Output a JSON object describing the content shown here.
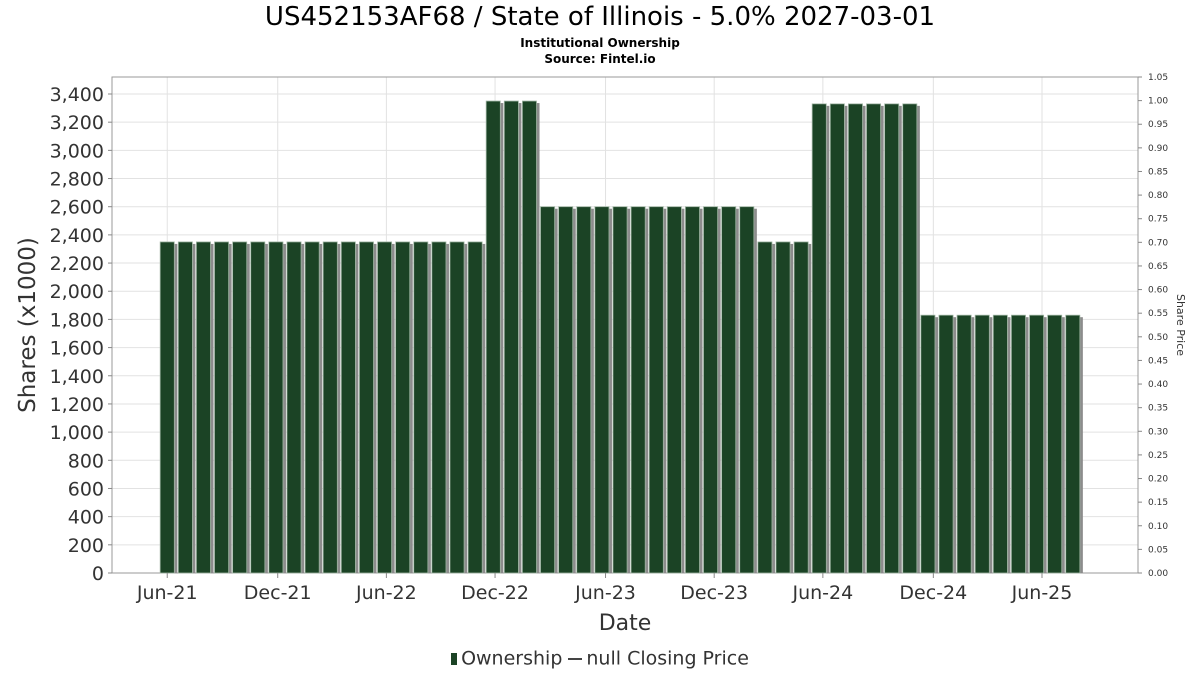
{
  "chart_data": {
    "type": "bar",
    "title": "US452153AF68 / State of Illinois - 5.0% 2027-03-01",
    "subtitles": [
      "Institutional Ownership",
      "Source: Fintel.io"
    ],
    "xlabel": "Date",
    "ylabel": "Shares (x1000)",
    "y2label": "Share Price",
    "ylim": [
      0,
      3400
    ],
    "y2lim": [
      0,
      1.05
    ],
    "yticks": [
      "0",
      "200",
      "400",
      "600",
      "800",
      "1,000",
      "1,200",
      "1,400",
      "1,600",
      "1,800",
      "2,000",
      "2,200",
      "2,400",
      "2,600",
      "2,800",
      "3,000",
      "3,200",
      "3,400"
    ],
    "ytick_values": [
      0,
      200,
      400,
      600,
      800,
      1000,
      1200,
      1400,
      1600,
      1800,
      2000,
      2200,
      2400,
      2600,
      2800,
      3000,
      3200,
      3400
    ],
    "y2ticks": [
      "0.00",
      "0.05",
      "0.10",
      "0.15",
      "0.20",
      "0.25",
      "0.30",
      "0.35",
      "0.40",
      "0.45",
      "0.50",
      "0.55",
      "0.60",
      "0.65",
      "0.70",
      "0.75",
      "0.80",
      "0.85",
      "0.90",
      "0.95",
      "1.00",
      "1.05"
    ],
    "y2tick_values": [
      0,
      0.05,
      0.1,
      0.15,
      0.2,
      0.25,
      0.3,
      0.35,
      0.4,
      0.45,
      0.5,
      0.55,
      0.6,
      0.65,
      0.7,
      0.75,
      0.8,
      0.85,
      0.9,
      0.95,
      1.0,
      1.05
    ],
    "xticks": [
      {
        "label": "Jun-21",
        "index": 0.5
      },
      {
        "label": "Dec-21",
        "index": 6.6
      },
      {
        "label": "Jun-22",
        "index": 12.6
      },
      {
        "label": "Dec-22",
        "index": 18.6
      },
      {
        "label": "Jun-23",
        "index": 24.7
      },
      {
        "label": "Dec-23",
        "index": 30.7
      },
      {
        "label": "Jun-24",
        "index": 36.7
      },
      {
        "label": "Dec-24",
        "index": 42.8
      },
      {
        "label": "Jun-25",
        "index": 48.8
      }
    ],
    "x_range": [
      -2.55,
      54.1
    ],
    "series": [
      {
        "name": "Ownership",
        "color": "#1b4325",
        "values": [
          2350,
          2350,
          2350,
          2350,
          2350,
          2350,
          2350,
          2350,
          2350,
          2350,
          2350,
          2350,
          2350,
          2350,
          2350,
          2350,
          2350,
          2350,
          3350,
          3350,
          3350,
          2600,
          2600,
          2600,
          2600,
          2600,
          2600,
          2600,
          2600,
          2600,
          2600,
          2600,
          2600,
          2350,
          2350,
          2350,
          3330,
          3330,
          3330,
          3330,
          3330,
          3330,
          1830,
          1830,
          1830,
          1830,
          1830,
          1830,
          1830,
          1830,
          1830
        ]
      }
    ],
    "legend": [
      "Ownership",
      "null Closing Price"
    ],
    "legend_position": "bottom",
    "grid": true
  }
}
